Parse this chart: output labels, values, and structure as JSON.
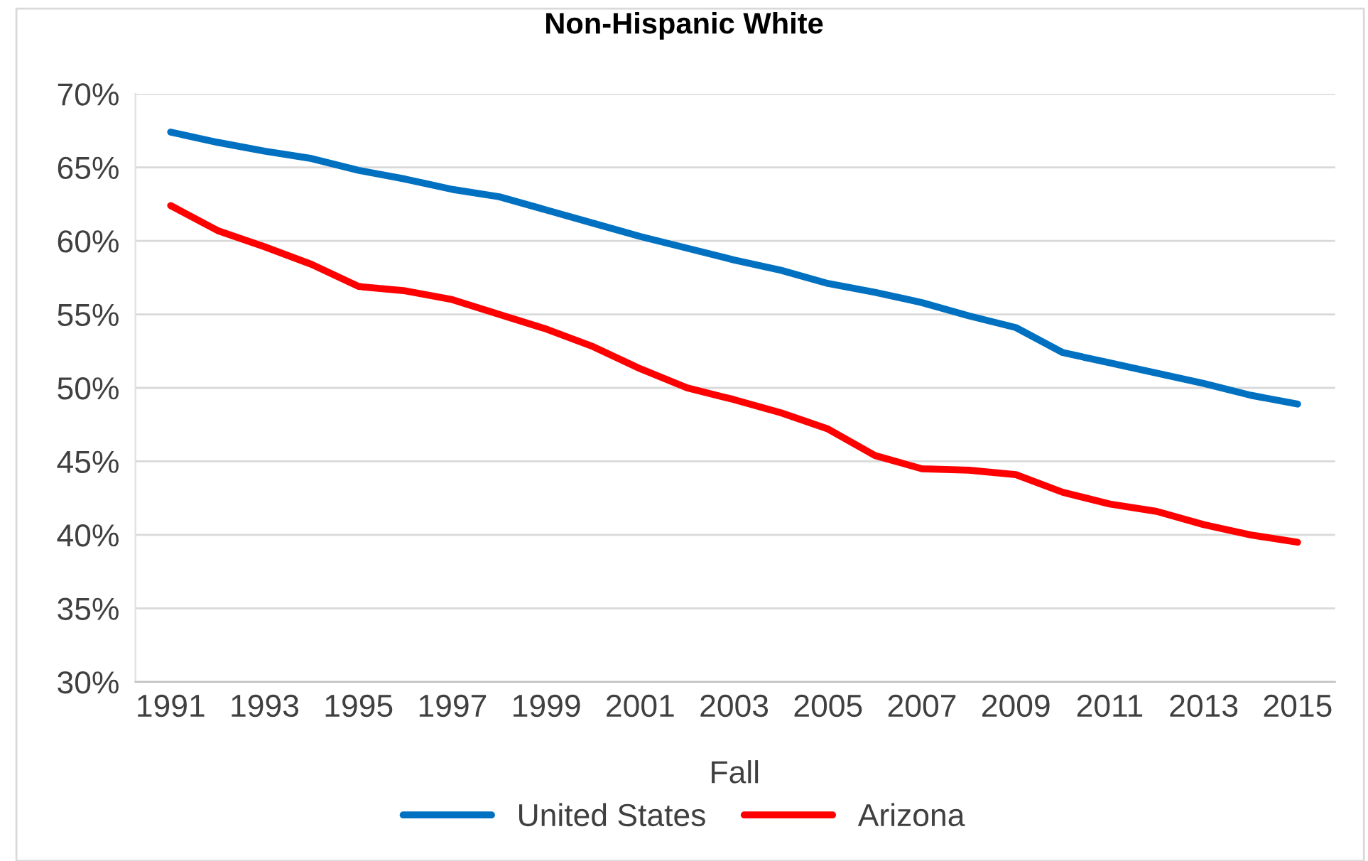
{
  "chart_data": {
    "type": "line",
    "title": "Non-Hispanic White",
    "xlabel": "Fall",
    "categories": [
      "1991",
      null,
      "1993",
      null,
      "1995",
      null,
      "1997",
      null,
      "1999",
      null,
      "2001",
      null,
      "2003",
      null,
      "2005",
      null,
      "2007",
      null,
      "2009",
      null,
      "2011",
      null,
      "2013",
      null,
      "2015"
    ],
    "series": [
      {
        "name": "United States",
        "color": "#0070c0",
        "values": [
          67.4,
          66.7,
          66.1,
          65.6,
          64.8,
          64.2,
          63.5,
          63.0,
          62.1,
          61.2,
          60.3,
          59.5,
          58.7,
          58.0,
          57.1,
          56.5,
          55.8,
          54.9,
          54.1,
          52.4,
          51.7,
          51.0,
          50.3,
          49.5,
          48.9
        ]
      },
      {
        "name": "Arizona",
        "color": "#ff0000",
        "values": [
          62.4,
          60.7,
          59.6,
          58.4,
          56.9,
          56.6,
          56.0,
          55.0,
          54.0,
          52.8,
          51.3,
          50.0,
          49.2,
          48.3,
          47.2,
          45.4,
          44.5,
          44.4,
          44.1,
          42.9,
          42.1,
          41.6,
          40.7,
          40.0,
          39.5
        ]
      }
    ],
    "ylim": [
      30,
      70
    ],
    "yticks": [
      {
        "value": 30,
        "label": "30%"
      },
      {
        "value": 35,
        "label": "35%"
      },
      {
        "value": 40,
        "label": "40%"
      },
      {
        "value": 45,
        "label": "45%"
      },
      {
        "value": 50,
        "label": "50%"
      },
      {
        "value": 55,
        "label": "55%"
      },
      {
        "value": 60,
        "label": "60%"
      },
      {
        "value": 65,
        "label": "65%"
      },
      {
        "value": 70,
        "label": "70%"
      }
    ],
    "grid": "y",
    "legend": "bottom",
    "marker": "none",
    "line_style": "solid"
  }
}
